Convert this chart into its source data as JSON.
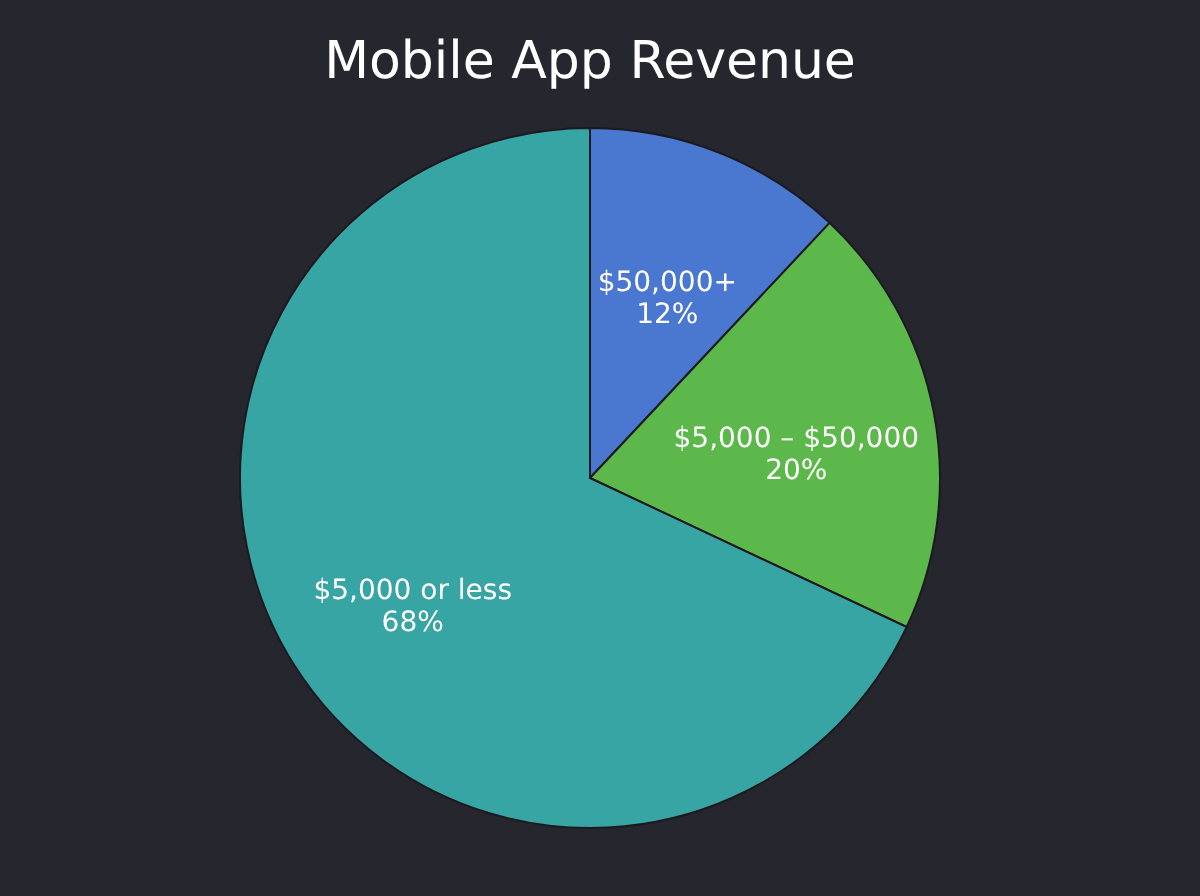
{
  "chart_data": {
    "type": "pie",
    "title": "Mobile App Revenue",
    "categories": [
      "$50,000+",
      "$5,000 – $50,000",
      "$5,000 or less"
    ],
    "values": [
      12,
      20,
      68
    ],
    "value_labels": [
      "12%",
      "20%",
      "68%"
    ],
    "colors": [
      "#4a78d0",
      "#5cb84a",
      "#38a5a5"
    ],
    "legend": false
  }
}
